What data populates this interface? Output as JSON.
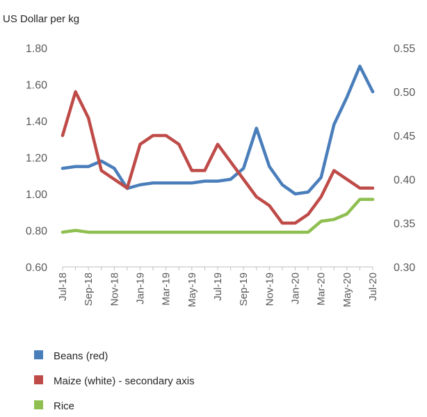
{
  "chart_data": {
    "type": "line",
    "title": "",
    "ylabel": "US Dollar per kg",
    "ylim": [
      0.6,
      1.8
    ],
    "y_ticks": [
      "0.60",
      "0.80",
      "1.00",
      "1.20",
      "1.40",
      "1.60",
      "1.80"
    ],
    "y2lim": [
      0.3,
      0.55
    ],
    "y2_ticks": [
      "0.30",
      "0.35",
      "0.40",
      "0.45",
      "0.50",
      "0.55"
    ],
    "x_tick_labels": [
      "Jul-18",
      "Sep-18",
      "Nov-18",
      "Jan-19",
      "Mar-19",
      "May-19",
      "Jul-19",
      "Sep-19",
      "Nov-19",
      "Jan-20",
      "Mar-20",
      "May-20",
      "Jul-20"
    ],
    "x": [
      "Jul-18",
      "Aug-18",
      "Sep-18",
      "Oct-18",
      "Nov-18",
      "Dec-18",
      "Jan-19",
      "Feb-19",
      "Mar-19",
      "Apr-19",
      "May-19",
      "Jun-19",
      "Jul-19",
      "Aug-19",
      "Sep-19",
      "Oct-19",
      "Nov-19",
      "Dec-19",
      "Jan-20",
      "Feb-20",
      "Mar-20",
      "Apr-20",
      "May-20",
      "Jun-20",
      "Jul-20"
    ],
    "grid": false,
    "legend_position": "bottom",
    "series": [
      {
        "name": "Beans (red)",
        "axis": "left",
        "color": "#4a7ebb",
        "values": [
          1.14,
          1.15,
          1.15,
          1.18,
          1.14,
          1.03,
          1.05,
          1.06,
          1.06,
          1.06,
          1.06,
          1.07,
          1.07,
          1.08,
          1.14,
          1.36,
          1.15,
          1.05,
          1.0,
          1.01,
          1.09,
          1.38,
          1.53,
          1.7,
          1.56
        ]
      },
      {
        "name": "Maize (white) - secondary axis",
        "axis": "right",
        "color": "#be4b48",
        "values": [
          0.45,
          0.5,
          0.47,
          0.41,
          0.4,
          0.39,
          0.44,
          0.45,
          0.45,
          0.44,
          0.41,
          0.41,
          0.44,
          0.42,
          0.4,
          0.38,
          0.37,
          0.35,
          0.35,
          0.36,
          0.38,
          0.41,
          0.4,
          0.39,
          0.39
        ]
      },
      {
        "name": "Rice",
        "axis": "left",
        "color": "#8ebf50",
        "values": [
          0.79,
          0.8,
          0.79,
          0.79,
          0.79,
          0.79,
          0.79,
          0.79,
          0.79,
          0.79,
          0.79,
          0.79,
          0.79,
          0.79,
          0.79,
          0.79,
          0.79,
          0.79,
          0.79,
          0.79,
          0.85,
          0.86,
          0.89,
          0.97,
          0.97
        ]
      }
    ]
  }
}
